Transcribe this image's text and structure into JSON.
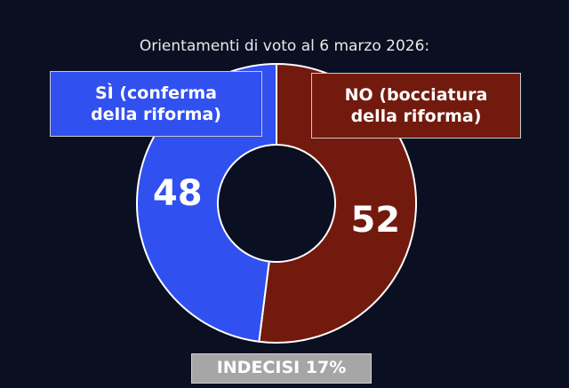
{
  "chart_data": {
    "type": "pie",
    "variant": "donut",
    "title": "Orientamenti di voto al 6 marzo 2026:",
    "slices": [
      {
        "label": "NO (bocciatura della riforma)",
        "label_lines": [
          "NO (bocciatura",
          "della riforma)"
        ],
        "value": 52,
        "value_label": "52",
        "color": "#731a0e"
      },
      {
        "label": "SÌ (conferma della riforma)",
        "label_lines": [
          "SÌ (conferma",
          "della riforma)"
        ],
        "value": 48,
        "value_label": "48",
        "color": "#3050f0"
      }
    ],
    "undecided_label": "INDECISI 17%",
    "background": "#0b0f22"
  }
}
